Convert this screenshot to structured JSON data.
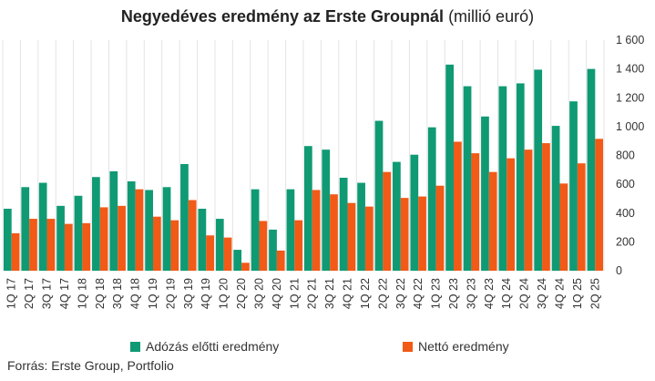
{
  "title_bold": "Negyedéves eredmény az Erste Groupnál",
  "title_rest": "(millió euró)",
  "source": "Forrás: Erste Group, Portfolio",
  "colors": {
    "pretax": "#0f9a74",
    "net": "#f15a17"
  },
  "chart_data": {
    "type": "bar",
    "title": "Negyedéves eredmény az Erste Groupnál (millió euró)",
    "categories": [
      "1Q 17",
      "2Q 17",
      "3Q 17",
      "4Q 17",
      "1Q 18",
      "2Q 18",
      "3Q 18",
      "4Q 18",
      "1Q 19",
      "2Q 19",
      "3Q 19",
      "4Q 19",
      "1Q 20",
      "2Q 20",
      "3Q 20",
      "4Q 20",
      "1Q 21",
      "2Q 21",
      "3Q 21",
      "4Q 21",
      "1Q 22",
      "2Q 22",
      "3Q 22",
      "4Q 22",
      "1Q 23",
      "2Q 23",
      "3Q 23",
      "4Q 23",
      "1Q 24",
      "2Q 24",
      "3Q 24",
      "4Q 24",
      "1Q 25",
      "2Q 25"
    ],
    "series": [
      {
        "name": "Adózás előtti eredmény",
        "values": [
          430,
          580,
          610,
          450,
          520,
          650,
          690,
          620,
          560,
          580,
          740,
          430,
          360,
          145,
          565,
          285,
          565,
          865,
          840,
          645,
          610,
          1040,
          755,
          805,
          995,
          1430,
          1280,
          1070,
          1280,
          1300,
          1395,
          1005,
          1175,
          1400
        ]
      },
      {
        "name": "Nettó eredmény",
        "values": [
          260,
          360,
          360,
          325,
          330,
          440,
          450,
          565,
          375,
          350,
          490,
          245,
          230,
          55,
          345,
          140,
          350,
          560,
          530,
          470,
          445,
          685,
          505,
          515,
          590,
          895,
          815,
          685,
          780,
          840,
          885,
          605,
          745,
          915
        ]
      }
    ],
    "y_ticks": [
      "0",
      "200",
      "400",
      "600",
      "800",
      "1 000",
      "1 200",
      "1 400",
      "1 600"
    ],
    "ylim": [
      0,
      1600
    ],
    "grid": "vertical",
    "y_axis_position": "right",
    "legend_position": "bottom"
  }
}
